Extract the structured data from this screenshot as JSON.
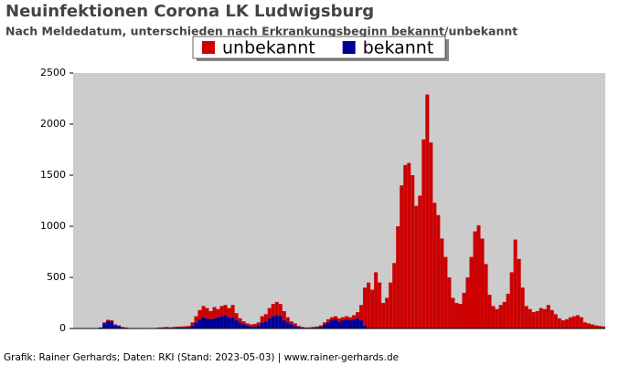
{
  "chart_data": {
    "type": "bar",
    "stacked": true,
    "title": "Neuinfektionen Corona LK Ludwigsburg",
    "subtitle": "Nach Meldedatum, unterschieden nach Erkrankungsbeginn bekannt/unbekannt",
    "footer": "Grafik: Rainer Gerhards; Daten: RKI (Stand: 2023-05-03) | www.rainer-gerhards.de",
    "ylim": [
      0,
      2500
    ],
    "yticks": [
      0,
      500,
      1000,
      1500,
      2000,
      2500
    ],
    "categories": [
      null,
      null,
      null,
      null,
      null,
      null,
      null,
      null,
      null,
      null,
      null,
      null,
      null,
      null,
      null,
      null,
      null,
      null,
      null,
      null,
      null,
      null,
      null,
      null,
      null,
      null,
      null,
      null,
      null,
      null,
      null,
      null,
      null,
      null,
      null,
      null,
      null,
      null,
      null,
      null,
      null,
      null,
      null,
      null,
      null,
      null,
      null,
      null,
      null,
      null,
      null,
      null,
      null,
      null,
      null,
      null,
      null,
      null,
      null,
      null,
      null,
      null,
      null,
      null,
      null,
      null,
      null,
      null,
      null,
      null,
      null,
      null,
      null,
      null,
      null,
      null,
      null,
      null,
      null,
      null,
      null,
      null,
      null,
      null,
      null,
      null,
      null,
      null,
      null,
      null,
      null,
      null,
      null,
      null,
      null,
      null,
      null,
      null,
      null,
      null,
      null,
      null,
      null,
      null,
      null,
      null,
      null,
      null,
      null,
      null,
      null,
      null,
      null,
      null,
      null,
      null,
      null,
      null,
      null,
      null,
      null,
      null,
      null,
      null,
      null,
      null,
      null,
      null,
      null,
      null,
      null,
      null,
      null,
      null,
      null,
      null,
      null,
      null,
      null,
      null,
      null,
      null,
      null,
      null,
      null
    ],
    "series": [
      {
        "name": "bekannt",
        "color": "#000099",
        "values": [
          0,
          0,
          0,
          0,
          0,
          0,
          0,
          10,
          50,
          75,
          70,
          30,
          25,
          10,
          5,
          2,
          1,
          2,
          1,
          2,
          1,
          1,
          2,
          5,
          6,
          8,
          6,
          8,
          9,
          10,
          10,
          12,
          30,
          60,
          90,
          110,
          100,
          90,
          100,
          110,
          120,
          130,
          110,
          110,
          80,
          60,
          40,
          30,
          20,
          20,
          30,
          60,
          70,
          100,
          120,
          130,
          120,
          80,
          60,
          40,
          25,
          15,
          8,
          6,
          7,
          8,
          10,
          15,
          40,
          60,
          80,
          90,
          70,
          80,
          90,
          80,
          90,
          100,
          80,
          30,
          10,
          5,
          2,
          0,
          0,
          0,
          0,
          0,
          0,
          0,
          0,
          0,
          0,
          0,
          0,
          0,
          0,
          0,
          0,
          0,
          0,
          0,
          0,
          0,
          0,
          0,
          0,
          0,
          0,
          0,
          0,
          0,
          0,
          0,
          0,
          0,
          0,
          0,
          0,
          0,
          0,
          0,
          0,
          0,
          0,
          0,
          0,
          0,
          0,
          0,
          0,
          0,
          0,
          0,
          0,
          0,
          0,
          0,
          0,
          0,
          0,
          0,
          0,
          0,
          0
        ]
      },
      {
        "name": "unbekannt",
        "color": "#cc0000",
        "values": [
          0,
          0,
          0,
          0,
          0,
          0,
          0,
          0,
          10,
          10,
          10,
          10,
          5,
          5,
          5,
          3,
          2,
          3,
          1,
          3,
          2,
          1,
          3,
          5,
          6,
          7,
          6,
          7,
          9,
          10,
          12,
          13,
          30,
          60,
          90,
          110,
          100,
          80,
          110,
          80,
          100,
          100,
          90,
          120,
          70,
          40,
          30,
          20,
          20,
          25,
          30,
          60,
          70,
          100,
          120,
          130,
          120,
          90,
          50,
          30,
          25,
          10,
          7,
          4,
          5,
          7,
          10,
          15,
          20,
          30,
          30,
          30,
          30,
          30,
          30,
          30,
          40,
          60,
          150,
          370,
          440,
          375,
          548,
          450,
          250,
          300,
          450,
          640,
          1000,
          1400,
          1600,
          1620,
          1500,
          1200,
          1300,
          1850,
          2290,
          1820,
          1230,
          1110,
          880,
          700,
          500,
          300,
          250,
          240,
          350,
          500,
          700,
          950,
          1010,
          880,
          630,
          330,
          220,
          190,
          230,
          260,
          340,
          550,
          870,
          680,
          400,
          220,
          190,
          160,
          170,
          200,
          190,
          230,
          180,
          140,
          100,
          80,
          90,
          110,
          120,
          130,
          110,
          60,
          50,
          40,
          30,
          25,
          20
        ]
      }
    ],
    "legend": "top"
  }
}
